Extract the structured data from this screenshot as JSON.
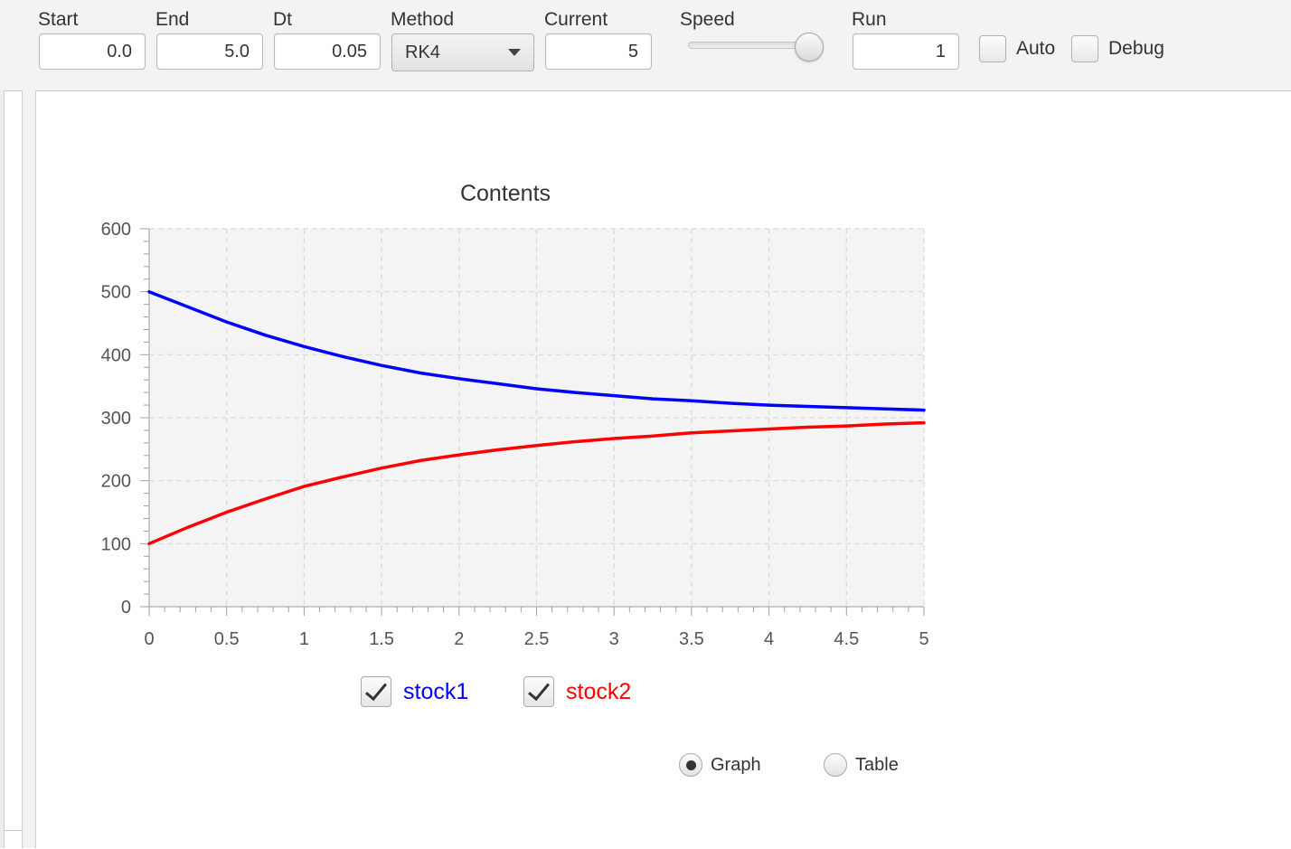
{
  "toolbar": {
    "start": {
      "label": "Start",
      "value": "0.0"
    },
    "end": {
      "label": "End",
      "value": "5.0"
    },
    "dt": {
      "label": "Dt",
      "value": "0.05"
    },
    "method": {
      "label": "Method",
      "value": "RK4"
    },
    "current": {
      "label": "Current",
      "value": "5"
    },
    "speed": {
      "label": "Speed",
      "level": 0.85
    },
    "run": {
      "label": "Run",
      "value": "1"
    },
    "auto": {
      "label": "Auto",
      "checked": false
    },
    "debug": {
      "label": "Debug",
      "checked": false
    }
  },
  "view_mode": {
    "graph_label": "Graph",
    "table_label": "Table",
    "selected": "Graph"
  },
  "chart_data": {
    "type": "line",
    "title": "Contents",
    "xlabel": "",
    "ylabel": "",
    "xlim": [
      0,
      5
    ],
    "ylim": [
      0,
      600
    ],
    "grid": true,
    "x_ticks": [
      "0",
      "0.5",
      "1",
      "1.5",
      "2",
      "2.5",
      "3",
      "3.5",
      "4",
      "4.5",
      "5"
    ],
    "y_ticks": [
      "0",
      "100",
      "200",
      "300",
      "400",
      "500",
      "600"
    ],
    "x": [
      0,
      0.25,
      0.5,
      0.75,
      1.0,
      1.25,
      1.5,
      1.75,
      2.0,
      2.25,
      2.5,
      2.75,
      3.0,
      3.25,
      3.5,
      3.75,
      4.0,
      4.25,
      4.5,
      4.75,
      5.0
    ],
    "series": [
      {
        "name": "stock1",
        "color": "#0000ff",
        "checked": true,
        "values": [
          500,
          476,
          452,
          431,
          413,
          397,
          383,
          371,
          362,
          354,
          346,
          340,
          335,
          330,
          327,
          323,
          320,
          318,
          316,
          314,
          312
        ]
      },
      {
        "name": "stock2",
        "color": "#ff0000",
        "checked": true,
        "values": [
          100,
          126,
          150,
          171,
          191,
          206,
          220,
          232,
          241,
          249,
          256,
          262,
          267,
          271,
          276,
          279,
          282,
          285,
          287,
          290,
          292
        ]
      }
    ],
    "legend": "bottom"
  }
}
